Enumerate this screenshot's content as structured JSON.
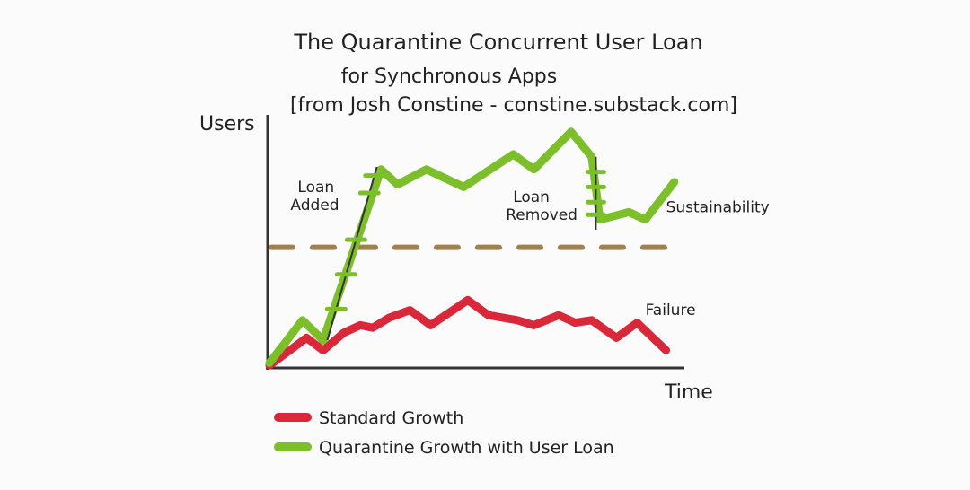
{
  "chart_data": {
    "type": "line",
    "title": [
      "The Quarantine Concurrent User Loan",
      "for Synchronous Apps",
      "[from Josh Constine - constine.substack.com]"
    ],
    "xlabel": "Time",
    "ylabel": "Users",
    "xlim": [
      0,
      100
    ],
    "ylim": [
      0,
      100
    ],
    "grid": false,
    "legend_placement": "bottom-left",
    "threshold": {
      "y": 48,
      "color": "#a08050",
      "style": "dashed"
    },
    "series": [
      {
        "name": "Standard Growth",
        "color": "#d8283a",
        "points": [
          [
            0,
            1
          ],
          [
            9,
            12
          ],
          [
            13,
            7
          ],
          [
            18,
            14
          ],
          [
            22,
            17
          ],
          [
            25,
            16
          ],
          [
            29,
            20
          ],
          [
            34,
            23
          ],
          [
            39,
            17
          ],
          [
            48,
            27
          ],
          [
            53,
            21
          ],
          [
            60,
            19
          ],
          [
            64,
            17
          ],
          [
            70,
            21
          ],
          [
            74,
            18
          ],
          [
            78,
            19
          ],
          [
            84,
            12
          ],
          [
            89,
            18
          ],
          [
            96,
            7
          ]
        ]
      },
      {
        "name": "Quarantine Growth with User Loan",
        "color": "#7cbf2a",
        "points": [
          [
            0,
            2
          ],
          [
            8,
            19
          ],
          [
            13,
            11
          ],
          [
            27,
            79
          ],
          [
            31,
            73
          ],
          [
            38,
            79
          ],
          [
            47,
            72
          ],
          [
            59,
            85
          ],
          [
            64,
            79
          ],
          [
            73,
            94
          ],
          [
            78,
            84
          ],
          [
            80,
            59
          ],
          [
            87,
            62
          ],
          [
            91,
            59
          ],
          [
            98,
            74
          ]
        ]
      }
    ],
    "annotations": [
      {
        "text": "Loan Added",
        "lines": [
          "Loan",
          "Added"
        ],
        "x": 14,
        "y": 70
      },
      {
        "text": "Loan Removed",
        "lines": [
          "Loan",
          "Removed"
        ],
        "x": 72,
        "y": 66
      },
      {
        "text": "Sustainability",
        "x": 96,
        "y": 62
      },
      {
        "text": "Failure",
        "x": 91,
        "y": 21
      }
    ]
  }
}
